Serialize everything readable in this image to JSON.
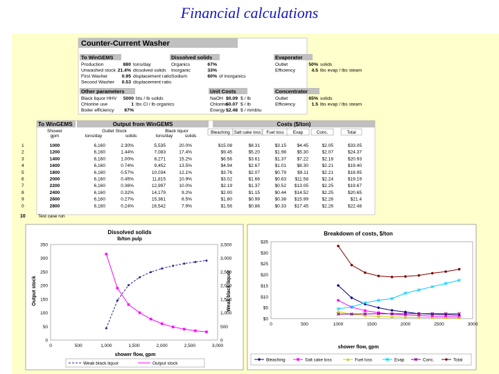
{
  "page": {
    "title": "Financial calculations"
  },
  "colors": {
    "slide_bg": "#ffffcc",
    "header_fill": "#c0c0c0",
    "title_color": "#1515c8",
    "row_highlight": "#cc0000"
  },
  "sheet": {
    "main_title": "Counter-Current Washer",
    "to_wingems": {
      "header": "To WinGEMS",
      "rows": [
        [
          "Production",
          "880",
          "tons/day"
        ],
        [
          "Unwashed stock",
          "21.4%",
          "dissolved solids"
        ],
        [
          "First Washer",
          "0.95",
          "displacement ratio"
        ],
        [
          "Second Washer",
          "0.53",
          "displacement ratio"
        ]
      ]
    },
    "dissolved_solids": {
      "header": "Dissolved solids",
      "rows": [
        [
          "Organics",
          "67%",
          ""
        ],
        [
          "Inorganic",
          "33%",
          ""
        ],
        [
          "Sodium",
          "60%",
          "of inorganics"
        ]
      ]
    },
    "evaporator": {
      "header": "Evaporator",
      "rows": [
        [
          "Outlet",
          "50%",
          "solids"
        ],
        [
          "Efficiency",
          "4.5",
          "lbs evap / lbs steam"
        ]
      ]
    },
    "other_params": {
      "header": "Other parameters",
      "rows": [
        [
          "Black liquor HHV",
          "5000",
          "btu / lb solids"
        ],
        [
          "Chlorine use",
          "1",
          "lbs Cl / lb organics"
        ],
        [
          "Boiler efficiency",
          "67%",
          ""
        ]
      ]
    },
    "unit_costs": {
      "header": "Unit Costs",
      "rows": [
        [
          "NaOH",
          "$0.09",
          "$ / lb"
        ],
        [
          "Chlorine",
          "$0.07",
          "$ / lb"
        ],
        [
          "Energy",
          "$2.48",
          "$ / mmbtu"
        ]
      ]
    },
    "concentrator": {
      "header": "Concentrator",
      "rows": [
        [
          "Outlet",
          "65%",
          "solids"
        ],
        [
          "Efficiency",
          "1.5",
          "lbs evap / lbs steam"
        ]
      ]
    },
    "table": {
      "to_wingems_header": "To WinGEMS",
      "output_header": "Output from WinGEMS",
      "costs_header": "Costs ($/ton)",
      "col_shower": "Shower",
      "col_gpm": "gpm",
      "col_outlet_stock": "Outlet Stock",
      "col_black_liquor": "Black liquor",
      "sub_headers": [
        "tons/day",
        "solids",
        "tons/day",
        "solids"
      ],
      "cost_columns": [
        "Bleaching",
        "Salt cake loss",
        "Fuel loss",
        "Evap",
        "Conc.",
        "Total"
      ],
      "rows": [
        [
          "1",
          "1000",
          "6,160",
          "2.30%",
          "5,535",
          "20.0%",
          "$15.08",
          "$8.31",
          "$3.15",
          "$4.45",
          "$2.05",
          "$33.05"
        ],
        [
          "2",
          "1200",
          "6,160",
          "1.44%",
          "7,083",
          "17.4%",
          "$9.45",
          "$5.20",
          "$1.98",
          "$5.30",
          "$2.07",
          "$24.37"
        ],
        [
          "3",
          "1400",
          "6,160",
          "1.00%",
          "8,271",
          "15.2%",
          "$6.56",
          "$3.61",
          "$1.37",
          "$7.22",
          "$2.18",
          "$20.93"
        ],
        [
          "4",
          "1600",
          "6,160",
          "0.74%",
          "9,452",
          "13.5%",
          "$4.94",
          "$2.67",
          "$1.01",
          "$8.30",
          "$2.21",
          "$19.40"
        ],
        [
          "5",
          "1800",
          "6,160",
          "0.57%",
          "10,034",
          "12.1%",
          "$3.76",
          "$2.07",
          "$0.79",
          "$9.11",
          "$2.21",
          "$18.95"
        ],
        [
          "6",
          "2000",
          "6,160",
          "0.45%",
          "11,815",
          "10.9%",
          "$3.02",
          "$1.66",
          "$0.63",
          "$11.58",
          "$2.24",
          "$19.19"
        ],
        [
          "7",
          "2200",
          "6,160",
          "0.36%",
          "12,997",
          "10.0%",
          "$2.19",
          "$1.37",
          "$0.52",
          "$13.05",
          "$2.25",
          "$19.67"
        ],
        [
          "8",
          "2400",
          "6,160",
          "0.32%",
          "14,179",
          "9.2%",
          "$2.00",
          "$1.15",
          "$0.44",
          "$14.52",
          "$2.25",
          "$20.65"
        ],
        [
          "9",
          "2600",
          "6,160",
          "0.27%",
          "15,361",
          "8.5%",
          "$1.80",
          "$0.99",
          "$0.38",
          "$15.99",
          "$2.26",
          "$21.4"
        ],
        [
          "0",
          "2800",
          "6,160",
          "0.24%",
          "16,542",
          "7.9%",
          "$1.56",
          "$0.86",
          "$0.33",
          "$17.45",
          "$2.26",
          "$22.48"
        ]
      ],
      "last_row": {
        "num": "10",
        "label": "Test case run"
      }
    }
  },
  "chart_data": [
    {
      "type": "line",
      "title": "Dissolved solids",
      "subtitle": "lb/ton pulp",
      "xlabel": "shower flow, gpm",
      "ylabel": "Output stock",
      "y2label": "Weak black liquor",
      "xlim": [
        0,
        3000
      ],
      "ylim": [
        0,
        350
      ],
      "y2lim": [
        0,
        3500
      ],
      "xticks": [
        "0",
        "500",
        "1,000",
        "1,500",
        "2,000",
        "2,500",
        "3,000"
      ],
      "yticks": [
        "0",
        "50",
        "100",
        "150",
        "200",
        "250",
        "300",
        "350"
      ],
      "y2ticks": [
        "0",
        "500",
        "1,000",
        "1,500",
        "2,000",
        "2,500",
        "3,000",
        "3,500"
      ],
      "x": [
        1000,
        1200,
        1400,
        1600,
        1800,
        2000,
        2200,
        2400,
        2600,
        2800
      ],
      "series": [
        {
          "name": "Weak black liquor",
          "axis": "y2",
          "color": "#1f1f8f",
          "values": [
            430,
            1450,
            2010,
            2300,
            2490,
            2620,
            2720,
            2800,
            2860,
            2910
          ]
        },
        {
          "name": "Output stock",
          "axis": "y",
          "color": "#ff00ff",
          "values": [
            315,
            190,
            130,
            100,
            77,
            60,
            48,
            40,
            34,
            30
          ]
        }
      ]
    },
    {
      "type": "line",
      "title": "Breakdown of costs, $/ton",
      "xlabel": "shower flow, gpm",
      "xlim": [
        0,
        3000
      ],
      "ylim": [
        0,
        35
      ],
      "xticks": [
        "0",
        "500",
        "1000",
        "1500",
        "2000",
        "2500",
        "3000"
      ],
      "yticks": [
        "$0",
        "$5",
        "$10",
        "$15",
        "$20",
        "$25",
        "$30",
        "$35"
      ],
      "x": [
        1000,
        1200,
        1400,
        1600,
        1800,
        2000,
        2200,
        2400,
        2600,
        2800
      ],
      "series": [
        {
          "name": "Bleaching",
          "color": "#000080",
          "values": [
            15.08,
            9.45,
            6.56,
            4.94,
            3.76,
            3.02,
            2.19,
            2.0,
            1.8,
            1.56
          ]
        },
        {
          "name": "Salt cake loss",
          "color": "#ff00ff",
          "values": [
            8.31,
            5.2,
            3.61,
            2.67,
            2.07,
            1.66,
            1.37,
            1.15,
            0.99,
            0.86
          ]
        },
        {
          "name": "Fuel loss",
          "color": "#cccc00",
          "values": [
            3.15,
            1.98,
            1.37,
            1.01,
            0.79,
            0.63,
            0.52,
            0.44,
            0.38,
            0.33
          ]
        },
        {
          "name": "Evap",
          "color": "#00ccff",
          "values": [
            4.45,
            5.3,
            7.22,
            8.3,
            9.11,
            11.58,
            13.05,
            14.52,
            15.99,
            17.45
          ]
        },
        {
          "name": "Conc.",
          "color": "#800080",
          "values": [
            2.05,
            2.07,
            2.18,
            2.21,
            2.21,
            2.24,
            2.25,
            2.25,
            2.26,
            2.26
          ]
        },
        {
          "name": "Total",
          "color": "#800000",
          "values": [
            33.05,
            24.37,
            20.93,
            19.4,
            18.95,
            19.19,
            19.67,
            20.65,
            21.4,
            22.48
          ]
        }
      ]
    }
  ]
}
